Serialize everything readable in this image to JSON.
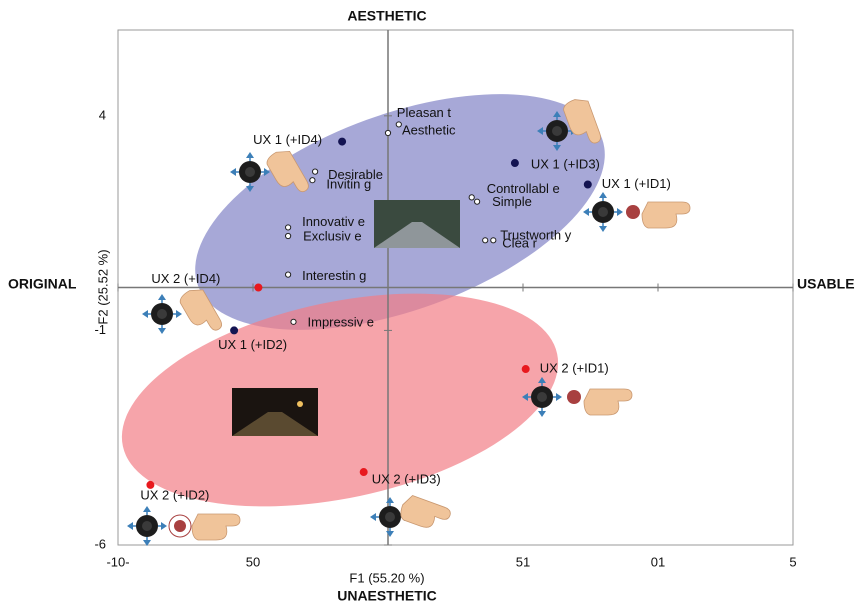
{
  "chart_data": {
    "type": "scatter",
    "top_label": "AESTHETIC",
    "bottom_label": "UNAESTHETIC",
    "left_label": "ORIGINAL",
    "right_label": "USABLE",
    "x_label": "F1 (55.20 %)",
    "y_label": "F2 (25.52 %)",
    "xlim": [
      -10,
      15
    ],
    "ylim": [
      -6,
      6
    ],
    "xticks": [
      {
        "value": -10,
        "label": "-10-"
      },
      {
        "value": -5,
        "label": "50"
      },
      {
        "value": 5,
        "label": "51"
      },
      {
        "value": 10,
        "label": "01"
      },
      {
        "value": 15,
        "label": "5"
      }
    ],
    "yticks": [
      4,
      -1,
      -6
    ],
    "series": [
      {
        "color": "#222222",
        "marker": "open",
        "labels": [
          "Pleasan t",
          "Aesthetic",
          "Desirable",
          "Invitin g",
          "Innovativ e",
          "Exclusiv e",
          "Interestin g",
          "Impressiv e",
          "Controllabl e",
          "Simple",
          "Trustworth y",
          "Clea r"
        ],
        "x": [
          0.4,
          0.0,
          -2.7,
          -2.8,
          -3.7,
          -3.7,
          -3.7,
          -3.5,
          3.1,
          3.3,
          3.6,
          3.9
        ],
        "values": [
          3.8,
          3.6,
          2.7,
          2.5,
          1.4,
          1.2,
          0.3,
          -0.8,
          2.1,
          2.0,
          1.1,
          1.1
        ]
      },
      {
        "color": "#141452",
        "marker": "filled",
        "labels": [
          "UX 1 (+ID4)",
          "UX 1 (+ID3)",
          "UX 1 (+ID1)",
          "UX 1 (+ID2)"
        ],
        "x": [
          -1.7,
          4.7,
          7.4,
          -5.7
        ],
        "values": [
          3.4,
          2.9,
          2.4,
          -1.0
        ]
      },
      {
        "color": "#e8191e",
        "marker": "filled",
        "labels": [
          "UX 2 (+ID4)",
          "UX 2 (+ID1)",
          "UX 2 (+ID3)",
          "UX 2 (+ID2)"
        ],
        "x": [
          -4.8,
          5.1,
          -0.9,
          -8.8
        ],
        "values": [
          0.0,
          -1.9,
          -4.3,
          -4.6
        ]
      }
    ]
  }
}
